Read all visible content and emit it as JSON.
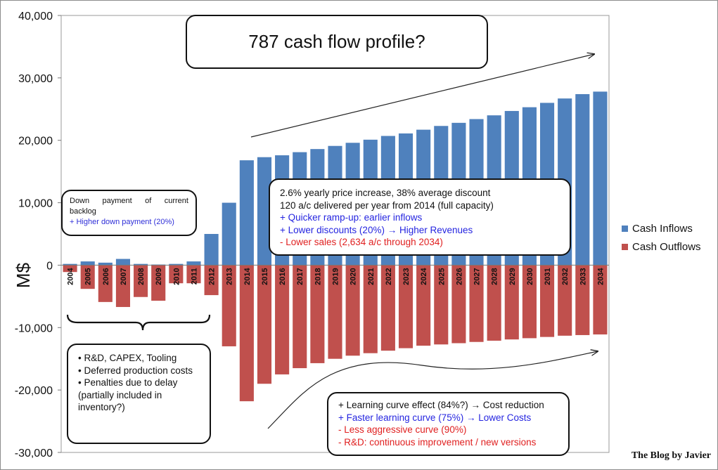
{
  "chart_data": {
    "type": "bar",
    "title": "787 cash flow profile?",
    "ylabel": "M$",
    "ylim": [
      -30000,
      40000
    ],
    "yticks": [
      "40,000",
      "30,000",
      "20,000",
      "10,000",
      "0",
      "-10,000",
      "-20,000",
      "-30,000"
    ],
    "ytick_values": [
      40000,
      30000,
      20000,
      10000,
      0,
      -10000,
      -20000,
      -30000
    ],
    "categories": [
      "2004",
      "2005",
      "2006",
      "2007",
      "2008",
      "2009",
      "2010",
      "2011",
      "2012",
      "2013",
      "2014",
      "2015",
      "2016",
      "2017",
      "2018",
      "2019",
      "2020",
      "2021",
      "2022",
      "2023",
      "2024",
      "2025",
      "2026",
      "2027",
      "2028",
      "2029",
      "2030",
      "2031",
      "2032",
      "2033",
      "2034"
    ],
    "series": [
      {
        "name": "Cash Inflows",
        "color": "#4f81bd",
        "values": [
          200,
          600,
          400,
          1000,
          200,
          100,
          200,
          600,
          5000,
          10000,
          16800,
          17300,
          17600,
          18100,
          18600,
          19100,
          19600,
          20100,
          20700,
          21100,
          21700,
          22300,
          22800,
          23400,
          24000,
          24700,
          25300,
          26000,
          26700,
          27400,
          27800
        ]
      },
      {
        "name": "Cash Outflows",
        "color": "#c0504d",
        "values": [
          -1100,
          -3800,
          -5900,
          -6700,
          -5100,
          -5700,
          -2900,
          -2900,
          -4800,
          -13000,
          -21800,
          -19000,
          -17500,
          -16500,
          -15700,
          -15000,
          -14500,
          -14100,
          -13700,
          -13300,
          -12900,
          -12700,
          -12500,
          -12300,
          -12100,
          -11900,
          -11700,
          -11500,
          -11300,
          -11200,
          -11100
        ]
      }
    ],
    "grid": false,
    "legend_position": "right"
  },
  "annotations": {
    "down_payment": {
      "line1": [
        "Down",
        "payment",
        "of",
        "current"
      ],
      "line2": "backlog",
      "line3": "+ Higher down payment (20%)"
    },
    "middle": {
      "line1": "2.6% yearly price increase, 38% average discount",
      "line2": "120 a/c delivered per year from 2014 (full capacity)",
      "line3": "+ Quicker ramp-up: earlier inflows",
      "line4": "+ Lower discounts (20%) → Higher Revenues",
      "line5": "- Lower sales (2,634 a/c through 2034)"
    },
    "rd": {
      "item1": "• R&D, CAPEX, Tooling",
      "item2": "• Deferred production costs",
      "item3": "• Penalties due to delay (partially included in inventory?)"
    },
    "learning": {
      "line1": "+ Learning curve effect (84%?) → Cost reduction",
      "line2": "+ Faster learning curve (75%) → Lower Costs",
      "line3": "- Less aggressive curve (90%)",
      "line4": "- R&D: continuous improvement / new versions"
    }
  },
  "watermark": "The Blog by Javier"
}
